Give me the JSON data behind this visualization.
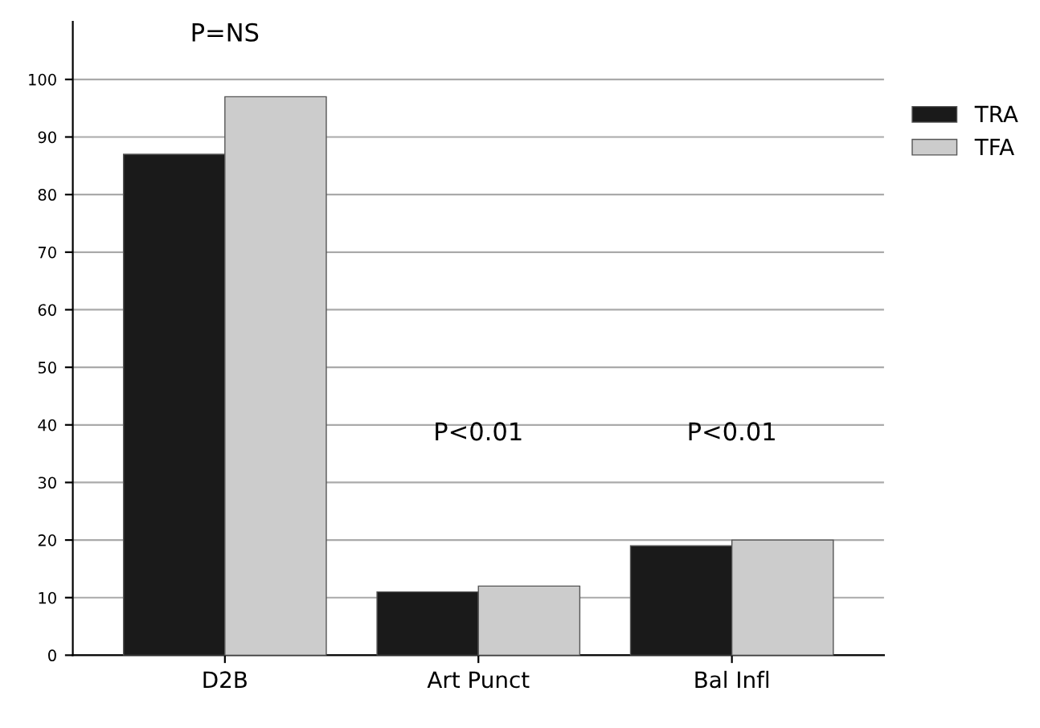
{
  "chart_data": {
    "type": "bar",
    "categories": [
      "D2B",
      "Art Punct",
      "Bal Infl"
    ],
    "series": [
      {
        "name": "TRA",
        "color": "#1a1a1a",
        "values": [
          87,
          11,
          19
        ]
      },
      {
        "name": "TFA",
        "color": "#cccccc",
        "values": [
          97,
          12,
          20
        ]
      }
    ],
    "ylim": [
      0,
      110
    ],
    "yticks": [
      0,
      10,
      20,
      30,
      40,
      50,
      60,
      70,
      80,
      90,
      100
    ],
    "grid": "y",
    "legend": "top right",
    "annotations": [
      "P=NS",
      "P<0.01",
      "P<0.01"
    ]
  }
}
